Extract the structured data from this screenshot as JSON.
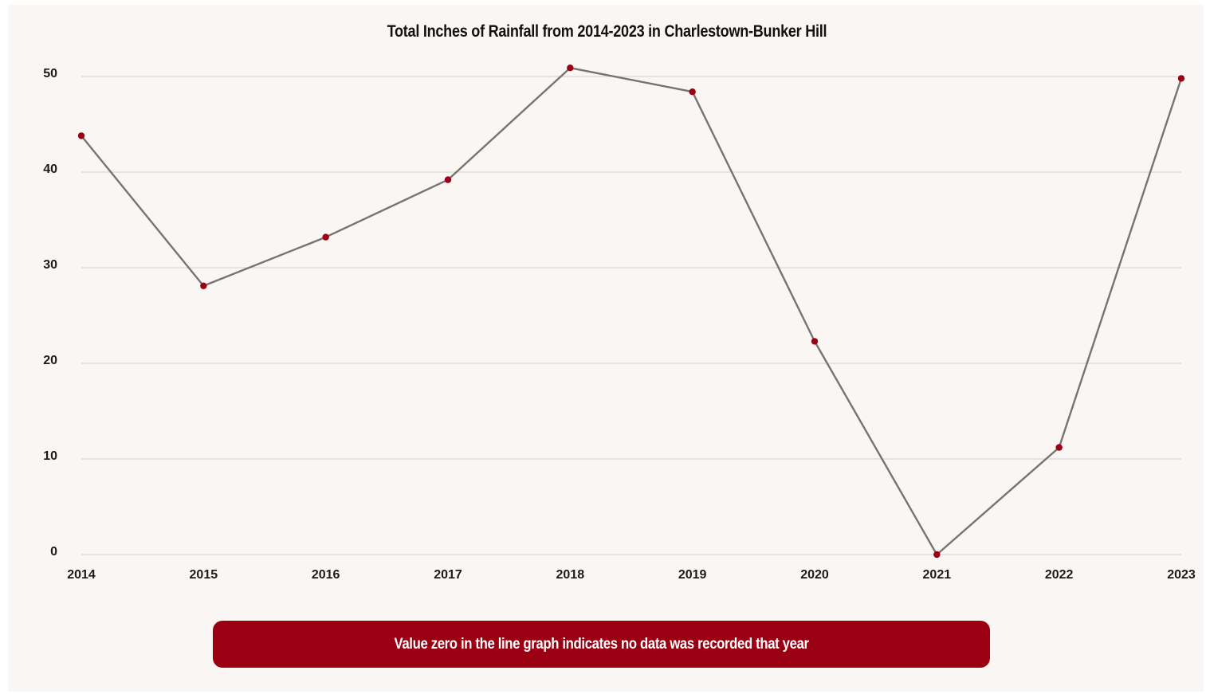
{
  "chart_data": {
    "type": "line",
    "title": "Total Inches of Rainfall from 2014-2023 in Charlestown-Bunker Hill",
    "xlabel": "",
    "ylabel": "",
    "categories": [
      "2014",
      "2015",
      "2016",
      "2017",
      "2018",
      "2019",
      "2020",
      "2021",
      "2022",
      "2023"
    ],
    "series": [
      {
        "values": [
          43.8,
          28.1,
          33.2,
          39.2,
          50.9,
          48.4,
          22.3,
          0,
          11.2,
          49.8
        ]
      }
    ],
    "ylim": [
      0,
      50
    ],
    "yticks": [
      0,
      10,
      20,
      30,
      40,
      50
    ],
    "grid": true,
    "legend": "none"
  },
  "note": {
    "text": "Value zero in the line graph indicates no data was recorded that year"
  },
  "colors": {
    "line": "#777373",
    "marker": "#9b0012",
    "grid": "#d9d5d2",
    "note_background": "#9b0012",
    "panel_background": "#faf6f3"
  }
}
